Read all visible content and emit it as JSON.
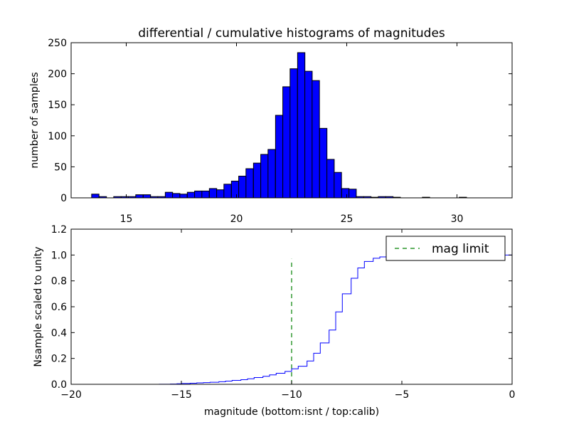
{
  "chart_data": [
    {
      "type": "bar",
      "subtype": "histogram",
      "title": "differential / cumulative histograms of magnitudes",
      "xlabel": "",
      "ylabel": "number of samples",
      "xlim": [
        12.5,
        32.5
      ],
      "ylim": [
        0,
        250
      ],
      "xticks": [
        "15",
        "20",
        "25",
        "30"
      ],
      "xtick_values": [
        15,
        20,
        25,
        30
      ],
      "yticks": [
        "0",
        "50",
        "100",
        "150",
        "200",
        "250"
      ],
      "ytick_values": [
        0,
        50,
        100,
        150,
        200,
        250
      ],
      "bin_width": 0.3333,
      "bin_starts": [
        13.43,
        13.77,
        14.1,
        14.43,
        14.77,
        15.1,
        15.43,
        15.77,
        16.1,
        16.43,
        16.77,
        17.1,
        17.43,
        17.77,
        18.1,
        18.43,
        18.77,
        19.1,
        19.43,
        19.77,
        20.1,
        20.43,
        20.77,
        21.1,
        21.43,
        21.77,
        22.1,
        22.43,
        22.77,
        23.1,
        23.43,
        23.77,
        24.1,
        24.43,
        24.77,
        25.1,
        25.43,
        25.77,
        26.1,
        26.43,
        26.77,
        27.1,
        27.43,
        27.77,
        28.1,
        28.43,
        28.77,
        29.1,
        29.43,
        29.77,
        30.1,
        30.43
      ],
      "values": [
        6,
        2,
        0,
        2,
        2,
        2,
        5,
        5,
        2,
        2,
        9,
        7,
        6,
        9,
        11,
        11,
        15,
        13,
        22,
        27,
        35,
        47,
        56,
        70,
        78,
        133,
        179,
        208,
        234,
        204,
        189,
        112,
        62,
        41,
        15,
        14,
        2,
        2,
        1,
        2,
        2,
        1,
        0,
        0,
        0,
        1,
        0,
        0,
        0,
        0,
        1,
        0
      ],
      "bar_color": "#0000ff"
    },
    {
      "type": "line",
      "subtype": "cumulative step",
      "xlabel": "magnitude (bottom:isnt / top:calib)",
      "ylabel": "Nsample scaled to unity",
      "xlim": [
        -20,
        0
      ],
      "ylim": [
        0,
        1.2
      ],
      "xticks": [
        "−20",
        "−15",
        "−10",
        "−5",
        "0"
      ],
      "xtick_values": [
        -20,
        -15,
        -10,
        -5,
        0
      ],
      "yticks": [
        "0.0",
        "0.2",
        "0.4",
        "0.6",
        "0.8",
        "1.0",
        "1.2"
      ],
      "ytick_values": [
        0,
        0.2,
        0.4,
        0.6,
        0.8,
        1.0,
        1.2
      ],
      "series": [
        {
          "color": "#0000ff",
          "style": "steps",
          "x": [
            -20,
            -19,
            -18,
            -17,
            -16,
            -15.5,
            -15.2,
            -15,
            -14.6,
            -14.3,
            -14,
            -13.7,
            -13.3,
            -13,
            -12.7,
            -12.3,
            -12,
            -11.7,
            -11.3,
            -11,
            -10.7,
            -10.3,
            -10,
            -9.7,
            -9.3,
            -9,
            -8.7,
            -8.3,
            -8,
            -7.7,
            -7.3,
            -7,
            -6.7,
            -6.3,
            -6,
            -5.7,
            -5.3,
            -5,
            -4,
            -3,
            -2,
            -1,
            -0.1,
            0
          ],
          "y": [
            0.0,
            0.0,
            0.0,
            0.0,
            0.001,
            0.002,
            0.004,
            0.006,
            0.008,
            0.011,
            0.013,
            0.016,
            0.02,
            0.025,
            0.03,
            0.036,
            0.043,
            0.052,
            0.062,
            0.073,
            0.085,
            0.1,
            0.12,
            0.14,
            0.18,
            0.24,
            0.32,
            0.42,
            0.56,
            0.7,
            0.82,
            0.9,
            0.95,
            0.975,
            0.985,
            0.99,
            0.995,
            0.998,
            0.999,
            1.0,
            1.0,
            1.0,
            1.0,
            0.0
          ]
        },
        {
          "name": "mag limit",
          "color": "#008000",
          "style": "dashed",
          "x": [
            -10,
            -10
          ],
          "y": [
            0,
            0.97
          ]
        }
      ],
      "legend": {
        "position": "top-right",
        "entries": [
          "mag limit"
        ]
      }
    }
  ]
}
